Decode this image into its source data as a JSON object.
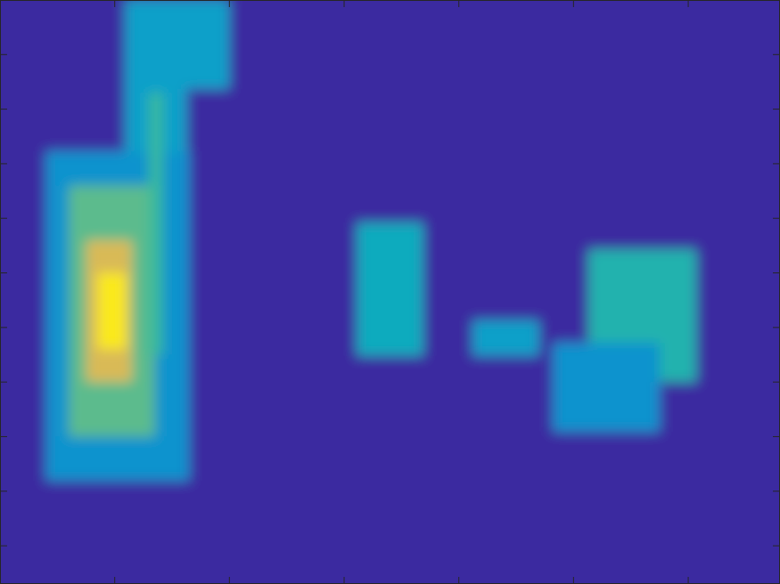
{
  "chart_data": {
    "type": "heatmap",
    "xlim": [
      0,
      6.8
    ],
    "ylim": [
      0.3,
      11
    ],
    "xticks": [
      1,
      2,
      3,
      4,
      5,
      6
    ],
    "yticks": [
      1,
      2,
      3,
      4,
      5,
      6,
      7,
      8,
      9,
      10
    ],
    "tick_labels": false,
    "clim": [
      0,
      1
    ],
    "cells": [
      {
        "x": [
          0,
          6.8
        ],
        "y": [
          0.3,
          11
        ],
        "value": 0
      },
      {
        "x": [
          0.4,
          1.65
        ],
        "y": [
          2.19,
          8.23
        ],
        "value": 0.3
      },
      {
        "x": [
          1.09,
          2.0
        ],
        "y": [
          9.37,
          11
        ],
        "value": 0.35
      },
      {
        "x": [
          1.09,
          1.63
        ],
        "y": [
          8.2,
          9.4
        ],
        "value": 0.35
      },
      {
        "x": [
          0.6,
          1.35
        ],
        "y": [
          3.0,
          7.6
        ],
        "value": 0.55
      },
      {
        "x": [
          1.3,
          1.42
        ],
        "y": [
          4.5,
          9.3
        ],
        "value": 0.5
      },
      {
        "x": [
          0.75,
          1.15
        ],
        "y": [
          4.0,
          6.6
        ],
        "value": 0.75
      },
      {
        "x": [
          0.85,
          1.1
        ],
        "y": [
          4.6,
          6.0
        ],
        "value": 0.95
      },
      {
        "x": [
          3.11,
          3.69
        ],
        "y": [
          4.48,
          6.92
        ],
        "value": 0.4
      },
      {
        "x": [
          4.12,
          4.7
        ],
        "y": [
          4.48,
          5.13
        ],
        "value": 0.35
      },
      {
        "x": [
          5.13,
          6.07
        ],
        "y": [
          4.0,
          6.43
        ],
        "value": 0.45
      },
      {
        "x": [
          4.82,
          5.75
        ],
        "y": [
          3.09,
          4.72
        ],
        "value": 0.3
      }
    ]
  }
}
